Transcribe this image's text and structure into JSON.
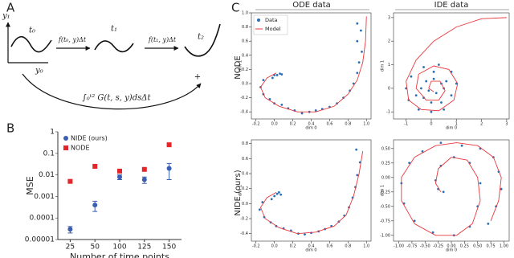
{
  "panel_labels": [
    "A",
    "B",
    "C"
  ],
  "diagram": {
    "axis_label": "y₁",
    "origin_label": "y₀",
    "t0": "t₀",
    "t1": "t₁",
    "t2": "t₂",
    "step0": "f(t₀, y)Δt",
    "step1": "f(t₁, y)Δt",
    "plus": "+",
    "integral": "∫₀ᵗ² G(t, s, y)dsΔt"
  },
  "column_headers": [
    "ODE data",
    "IDE data"
  ],
  "row_labels": [
    "NODE",
    "NIDE (ours)"
  ],
  "chart_data": [
    {
      "type": "scatter",
      "xlabel": "Number of time points",
      "ylabel": "MSE",
      "categories": [
        "25",
        "50",
        "100",
        "125",
        "150"
      ],
      "yscale": "log",
      "ylim": [
        1e-05,
        1
      ],
      "yticks": [
        1e-05,
        0.0001,
        0.001,
        0.01,
        0.1,
        1
      ],
      "legend": "upper left",
      "series": [
        {
          "name": "NIDE (ours)",
          "color": "#3a5eb0",
          "marker": "circle",
          "values": [
            3e-05,
            0.0004,
            0.008,
            0.006,
            0.02
          ],
          "errors": [
            1e-05,
            0.0002,
            0.002,
            0.002,
            0.014
          ]
        },
        {
          "name": "NODE",
          "color": "#e3262b",
          "marker": "square",
          "values": [
            0.005,
            0.025,
            0.015,
            0.018,
            0.25
          ]
        }
      ]
    },
    {
      "type": "scatter",
      "xlabel": "dim 0",
      "ylabel": "dim 1",
      "legend": "upper left",
      "xlim": [
        -0.25,
        1.05
      ],
      "ylim": [
        -0.5,
        1.0
      ],
      "xticks": [
        -0.2,
        {
          "value": 0,
          "label": "0.0"
        },
        0.2,
        0.4,
        0.6,
        0.8,
        {
          "value": 1,
          "label": "1.0"
        }
      ],
      "yticks": [
        -0.4,
        -0.2,
        {
          "value": 0,
          "label": "0.0"
        },
        0.2,
        0.4,
        0.6,
        0.8,
        {
          "value": 1,
          "label": "1.0"
        }
      ],
      "series": [
        {
          "name": "Data",
          "mode": "markers",
          "color": "#2a6fb5",
          "x": [
            0.0,
            0.03,
            0.06,
            0.08,
            -0.02,
            -0.12,
            -0.15,
            -0.12,
            -0.05,
            0.0,
            0.08,
            0.15,
            0.22,
            0.3,
            0.38,
            0.45,
            0.52,
            0.6,
            0.68,
            0.75,
            0.82,
            0.86,
            0.9,
            0.92,
            0.95,
            0.9,
            0.94,
            0.9
          ],
          "y": [
            0.12,
            0.12,
            0.14,
            0.13,
            0.08,
            0.05,
            -0.05,
            -0.15,
            -0.22,
            -0.28,
            -0.3,
            -0.35,
            -0.38,
            -0.42,
            -0.4,
            -0.38,
            -0.36,
            -0.33,
            -0.28,
            -0.2,
            -0.1,
            0.0,
            0.15,
            0.3,
            0.45,
            0.6,
            0.75,
            0.85
          ]
        },
        {
          "name": "Model",
          "mode": "line",
          "color": "#e8383d",
          "x": [
            0.02,
            -0.08,
            -0.15,
            -0.1,
            0.05,
            0.25,
            0.45,
            0.65,
            0.8,
            0.9,
            0.96,
            0.99,
            1.0
          ],
          "y": [
            0.15,
            0.08,
            -0.05,
            -0.2,
            -0.32,
            -0.4,
            -0.4,
            -0.32,
            -0.15,
            0.05,
            0.3,
            0.6,
            0.95
          ]
        }
      ]
    },
    {
      "type": "scatter",
      "xlabel": "dim 0",
      "ylabel": "dim 1",
      "xlim": [
        -1.5,
        3.1
      ],
      "ylim": [
        -1.3,
        3.2
      ],
      "xticks": [
        -1,
        0,
        1,
        2,
        3
      ],
      "yticks": [
        -1,
        0,
        1,
        2,
        3
      ],
      "series": [
        {
          "mode": "markers",
          "color": "#2a6fb5",
          "x": [
            0.5,
            0.4,
            0.1,
            -0.2,
            -0.4,
            -0.3,
            0.0,
            0.4,
            0.8,
            1.0,
            0.8,
            0.3,
            -0.3,
            -0.8,
            -1.0,
            -0.9,
            -0.5,
            0.0,
            0.5,
            0.2,
            -0.1,
            0.6,
            -0.6,
            0.1
          ],
          "y": [
            0.0,
            0.2,
            0.4,
            0.3,
            0.0,
            -0.4,
            -0.6,
            -0.6,
            -0.3,
            0.2,
            0.7,
            1.0,
            0.9,
            0.5,
            0.0,
            -0.5,
            -0.9,
            -1.0,
            -0.9,
            -0.2,
            -0.1,
            0.3,
            -0.3,
            0.7
          ]
        },
        {
          "mode": "line",
          "color": "#e8383d",
          "x": [
            3,
            2,
            1,
            0.1,
            -0.6,
            -1.0,
            -0.9,
            -0.4,
            0.3,
            0.9,
            1.05,
            0.7,
            0.1,
            -0.5,
            -0.6,
            -0.2,
            0.3,
            0.55,
            0.35,
            0.0,
            -0.1,
            0.1
          ],
          "y": [
            3,
            2.95,
            2.6,
            2.0,
            1.2,
            0.3,
            -0.5,
            -0.9,
            -0.95,
            -0.5,
            0.2,
            0.8,
            0.95,
            0.6,
            0.0,
            -0.5,
            -0.5,
            -0.1,
            0.3,
            0.3,
            0.0,
            -0.15
          ]
        }
      ]
    },
    {
      "type": "scatter",
      "xlabel": "dim 0",
      "ylabel": "dim 1",
      "xlim": [
        -0.25,
        1.05
      ],
      "ylim": [
        -0.5,
        0.85
      ],
      "xticks": [
        -0.2,
        {
          "value": 0,
          "label": "0.0"
        },
        0.2,
        0.4,
        0.6,
        0.8,
        {
          "value": 1,
          "label": "1.0"
        }
      ],
      "yticks": [
        -0.4,
        -0.2,
        {
          "value": 0,
          "label": "0.0"
        },
        0.2,
        0.4,
        0.6,
        0.8
      ],
      "series": [
        {
          "mode": "markers",
          "color": "#2a6fb5",
          "x": [
            0.0,
            0.03,
            0.05,
            0.07,
            -0.03,
            -0.13,
            -0.16,
            -0.11,
            -0.04,
            0.02,
            0.1,
            0.18,
            0.26,
            0.33,
            0.4,
            0.48,
            0.55,
            0.62,
            0.7,
            0.76,
            0.81,
            0.85,
            0.88,
            0.9,
            0.93,
            0.89
          ],
          "y": [
            0.1,
            0.13,
            0.15,
            0.12,
            0.06,
            0.02,
            -0.08,
            -0.18,
            -0.25,
            -0.3,
            -0.33,
            -0.36,
            -0.4,
            -0.41,
            -0.39,
            -0.37,
            -0.34,
            -0.3,
            -0.24,
            -0.16,
            -0.05,
            0.08,
            0.22,
            0.38,
            0.55,
            0.72
          ]
        },
        {
          "mode": "line",
          "color": "#e8383d",
          "x": [
            0.02,
            -0.08,
            -0.15,
            -0.1,
            0.05,
            0.25,
            0.45,
            0.65,
            0.78,
            0.86,
            0.92,
            0.96
          ],
          "y": [
            0.15,
            0.08,
            -0.05,
            -0.2,
            -0.32,
            -0.4,
            -0.38,
            -0.3,
            -0.15,
            0.1,
            0.4,
            0.7
          ]
        }
      ]
    },
    {
      "type": "scatter",
      "xlabel": "dim 0",
      "ylabel": "dim 1",
      "xlim": [
        -1.1,
        1.1
      ],
      "ylim": [
        -1.1,
        0.65
      ],
      "xticks": [
        {
          "value": -1,
          "label": "-1.00"
        },
        -0.75,
        {
          "value": -0.5,
          "label": "-0.50"
        },
        -0.25,
        {
          "value": 0,
          "label": "0.00"
        },
        0.25,
        {
          "value": 0.5,
          "label": "0.50"
        },
        0.75,
        {
          "value": 1,
          "label": "1.00"
        }
      ],
      "yticks": [
        {
          "value": -1,
          "label": "-1.00"
        },
        -0.75,
        {
          "value": -0.5,
          "label": "-0.50"
        },
        -0.25,
        {
          "value": 0,
          "label": "0.00"
        },
        0.25,
        {
          "value": 0.5,
          "label": "0.50"
        }
      ],
      "series": [
        {
          "mode": "markers",
          "color": "#2a6fb5",
          "x": [
            0.7,
            0.85,
            0.95,
            0.9,
            0.8,
            0.55,
            0.2,
            -0.2,
            -0.55,
            -0.8,
            -0.95,
            -0.9,
            -0.7,
            -0.35,
            0.05,
            0.35,
            0.5,
            0.55,
            0.35,
            0.05,
            -0.2,
            -0.3,
            -0.15,
            -0.25
          ],
          "y": [
            -0.8,
            -0.5,
            -0.2,
            0.1,
            0.35,
            0.5,
            0.55,
            0.6,
            0.45,
            0.25,
            -0.1,
            -0.45,
            -0.75,
            -0.95,
            -1.0,
            -0.85,
            -0.5,
            -0.1,
            0.25,
            0.35,
            0.2,
            -0.05,
            -0.25,
            -0.2
          ]
        },
        {
          "mode": "line",
          "color": "#e8383d",
          "x": [
            0.75,
            0.9,
            0.95,
            0.8,
            0.5,
            0.1,
            -0.3,
            -0.7,
            -0.95,
            -0.95,
            -0.7,
            -0.3,
            0.1,
            0.4,
            0.55,
            0.5,
            0.3,
            0.0,
            -0.25,
            -0.3,
            -0.2
          ],
          "y": [
            -0.75,
            -0.4,
            0.0,
            0.35,
            0.55,
            0.6,
            0.55,
            0.35,
            0.0,
            -0.4,
            -0.8,
            -1.0,
            -1.0,
            -0.8,
            -0.4,
            0.0,
            0.3,
            0.35,
            0.15,
            -0.1,
            -0.25
          ]
        }
      ]
    }
  ]
}
